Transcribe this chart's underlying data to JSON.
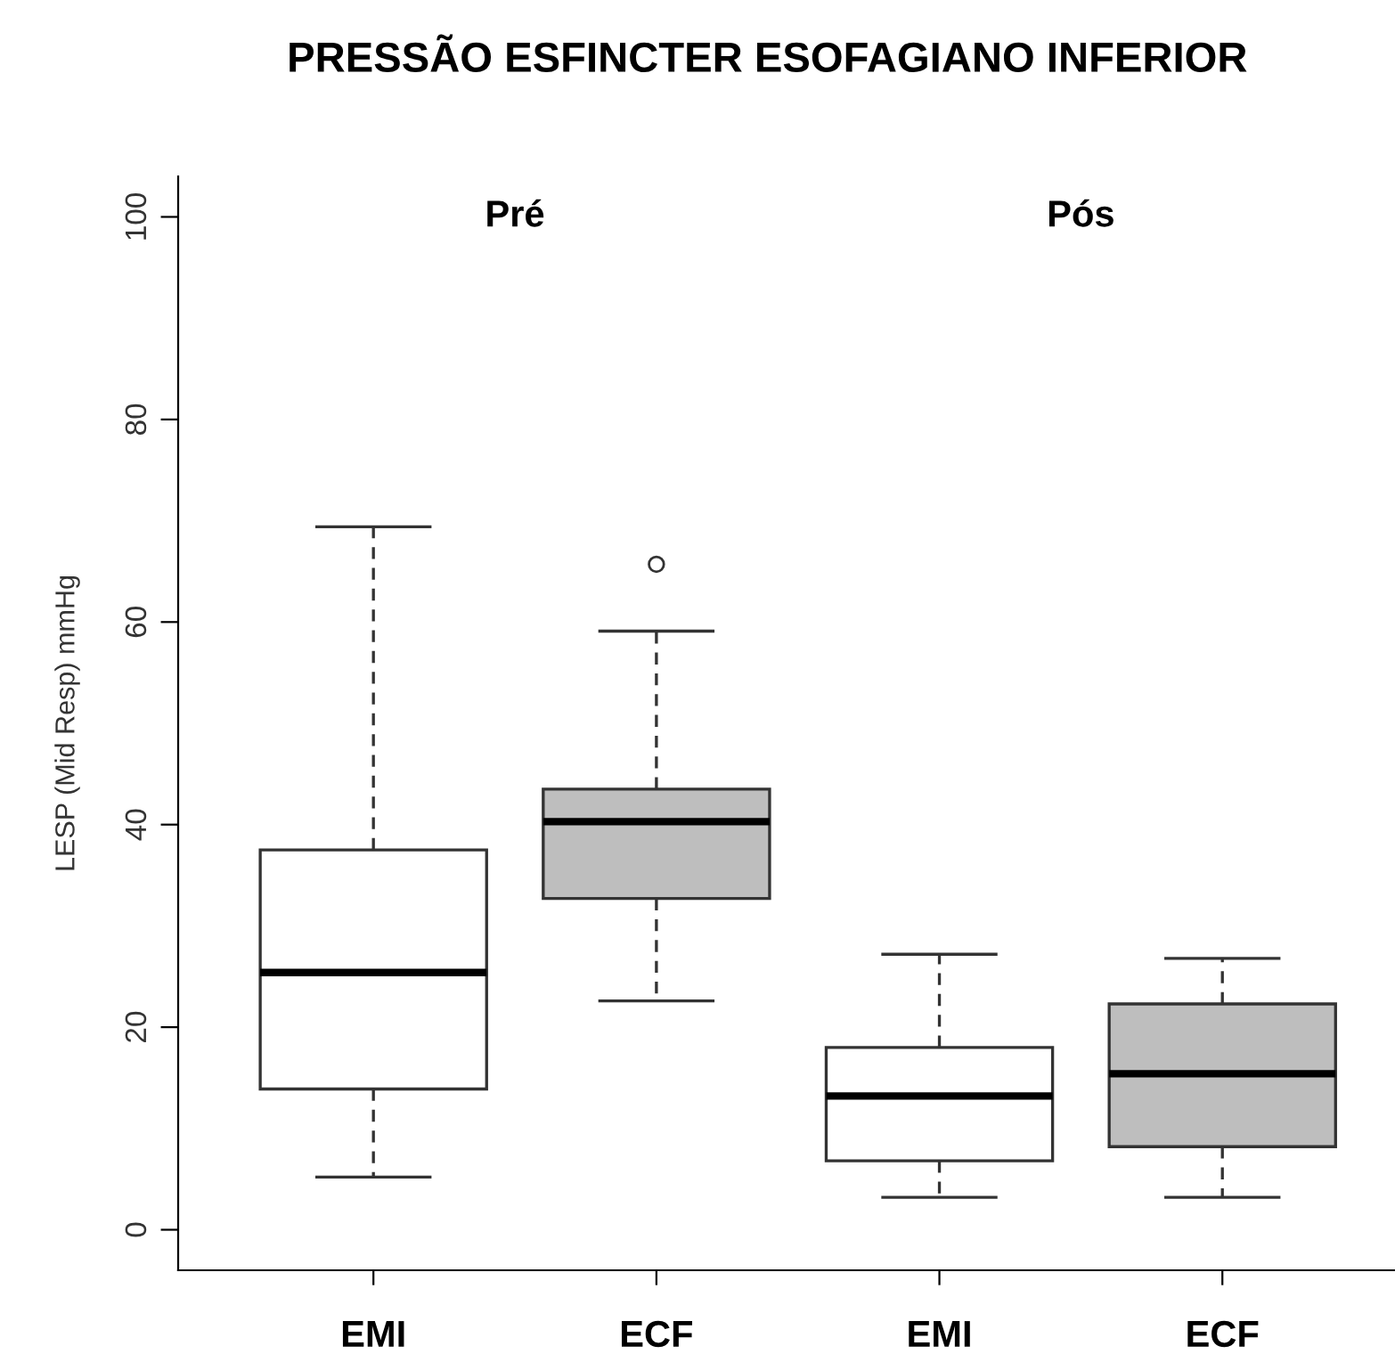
{
  "chart_data": {
    "type": "box",
    "title": "PRESSÃO ESFINCTER ESOFAGIANO INFERIOR",
    "ylabel": "LESP (Mid Resp) mmHg",
    "categories": [
      "EMI",
      "ECF",
      "EMI",
      "ECF"
    ],
    "colors": [
      "#ffffff",
      "#bebebe",
      "#ffffff",
      "#bebebe"
    ],
    "boxes": [
      {
        "low": 5.2,
        "q1": 13.9,
        "median": 25.4,
        "q3": 37.5,
        "high": 69.4
      },
      {
        "low": 22.6,
        "q1": 32.7,
        "median": 40.3,
        "q3": 43.5,
        "high": 59.1,
        "outliers": [
          65.7
        ]
      },
      {
        "low": 3.2,
        "q1": 6.8,
        "median": 13.2,
        "q3": 18.0,
        "high": 27.2
      },
      {
        "low": 3.2,
        "q1": 8.2,
        "median": 15.4,
        "q3": 22.3,
        "high": 26.8
      }
    ],
    "annotations": [
      "Pré",
      "Pós"
    ],
    "ylim": [
      -4,
      104
    ],
    "yticks": [
      0,
      20,
      40,
      60,
      80,
      100
    ],
    "grid": false,
    "legend": false
  }
}
